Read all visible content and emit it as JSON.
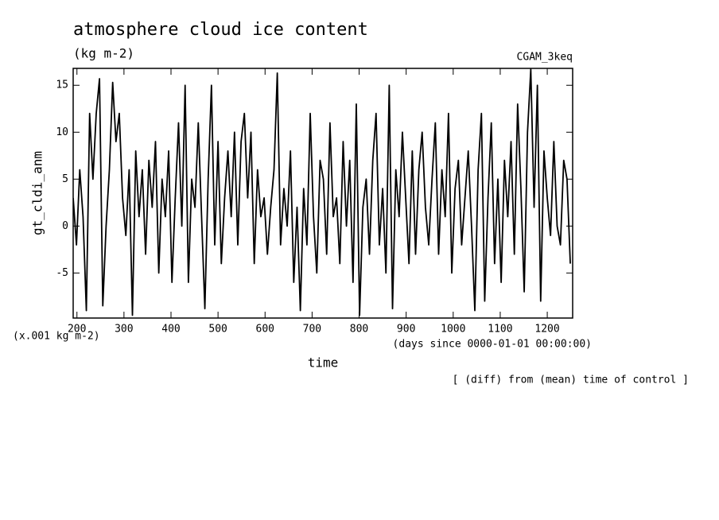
{
  "chart_data": {
    "type": "line",
    "title": "atmosphere cloud ice content",
    "subtitle": "(kg m-2)",
    "experiment": "CGAM_3keq",
    "y_label": "gt_cldi_anm",
    "y_units": "(x.001 kg m-2)",
    "x_label": "time",
    "x_units": "(days since 0000-01-01 00:00:00)",
    "note": "[ (diff) from (mean) time of control ]",
    "xlim": [
      192,
      1254
    ],
    "ylim": [
      -9.8,
      16.8
    ],
    "xticks": [
      200,
      300,
      400,
      500,
      600,
      700,
      800,
      900,
      1000,
      1100,
      1200
    ],
    "yticks": [
      -5,
      0,
      5,
      10,
      15
    ],
    "color": "#000000",
    "x": [
      192,
      199,
      206,
      213,
      220,
      227,
      234,
      241,
      248,
      255,
      262,
      269,
      276,
      283,
      290,
      297,
      304,
      311,
      318,
      325,
      332,
      339,
      346,
      353,
      360,
      367,
      374,
      381,
      388,
      395,
      402,
      409,
      416,
      423,
      430,
      437,
      444,
      451,
      458,
      465,
      472,
      479,
      486,
      493,
      500,
      507,
      514,
      521,
      528,
      535,
      542,
      549,
      556,
      563,
      570,
      577,
      584,
      591,
      598,
      605,
      612,
      619,
      626,
      633,
      640,
      647,
      654,
      661,
      668,
      675,
      682,
      689,
      696,
      703,
      710,
      717,
      724,
      731,
      738,
      745,
      752,
      759,
      766,
      773,
      780,
      787,
      794,
      801,
      808,
      815,
      822,
      829,
      836,
      843,
      850,
      857,
      864,
      871,
      878,
      885,
      892,
      899,
      906,
      913,
      920,
      927,
      934,
      941,
      948,
      955,
      962,
      969,
      976,
      983,
      990,
      997,
      1004,
      1011,
      1018,
      1025,
      1032,
      1039,
      1046,
      1053,
      1060,
      1067,
      1074,
      1081,
      1088,
      1095,
      1102,
      1109,
      1116,
      1123,
      1130,
      1137,
      1144,
      1151,
      1158,
      1165,
      1172,
      1179,
      1186,
      1193,
      1200,
      1207,
      1214,
      1221,
      1228,
      1235,
      1242,
      1249
    ],
    "values": [
      3,
      -2,
      6,
      1,
      -9,
      12,
      5,
      12,
      15.7,
      -8.5,
      0,
      6,
      15.3,
      9,
      12,
      3,
      -1,
      6,
      -9.5,
      8,
      1,
      6,
      -3,
      7,
      2,
      9,
      -5,
      5,
      1,
      8,
      -6,
      3,
      11,
      0,
      15,
      -6,
      5,
      2,
      11,
      1,
      -8.8,
      5,
      15,
      -2,
      9,
      -4,
      3,
      8,
      1,
      10,
      -2,
      9,
      12,
      3,
      10,
      -4,
      6,
      1,
      3,
      -3,
      2,
      6,
      16.3,
      -2,
      4,
      0,
      8,
      -6,
      2,
      -9,
      4,
      -2,
      12,
      1,
      -5,
      7,
      5,
      -3,
      11,
      1,
      3,
      -4,
      9,
      0,
      7,
      -6,
      13,
      -9.5,
      2,
      5,
      -3,
      7,
      12,
      -2,
      4,
      -5,
      15,
      -8.8,
      6,
      1,
      10,
      3,
      -4,
      8,
      -3,
      6,
      10,
      2,
      -2,
      5,
      11,
      -3,
      6,
      1,
      12,
      -5,
      4,
      7,
      -2,
      3,
      8,
      0,
      -9,
      6,
      12,
      -8,
      3,
      11,
      -4,
      5,
      -6,
      7,
      1,
      9,
      -3,
      13,
      4,
      -7,
      10,
      16.7,
      2,
      15,
      -8,
      8,
      3,
      -1,
      9,
      0,
      -2,
      7,
      5,
      -4
    ]
  }
}
